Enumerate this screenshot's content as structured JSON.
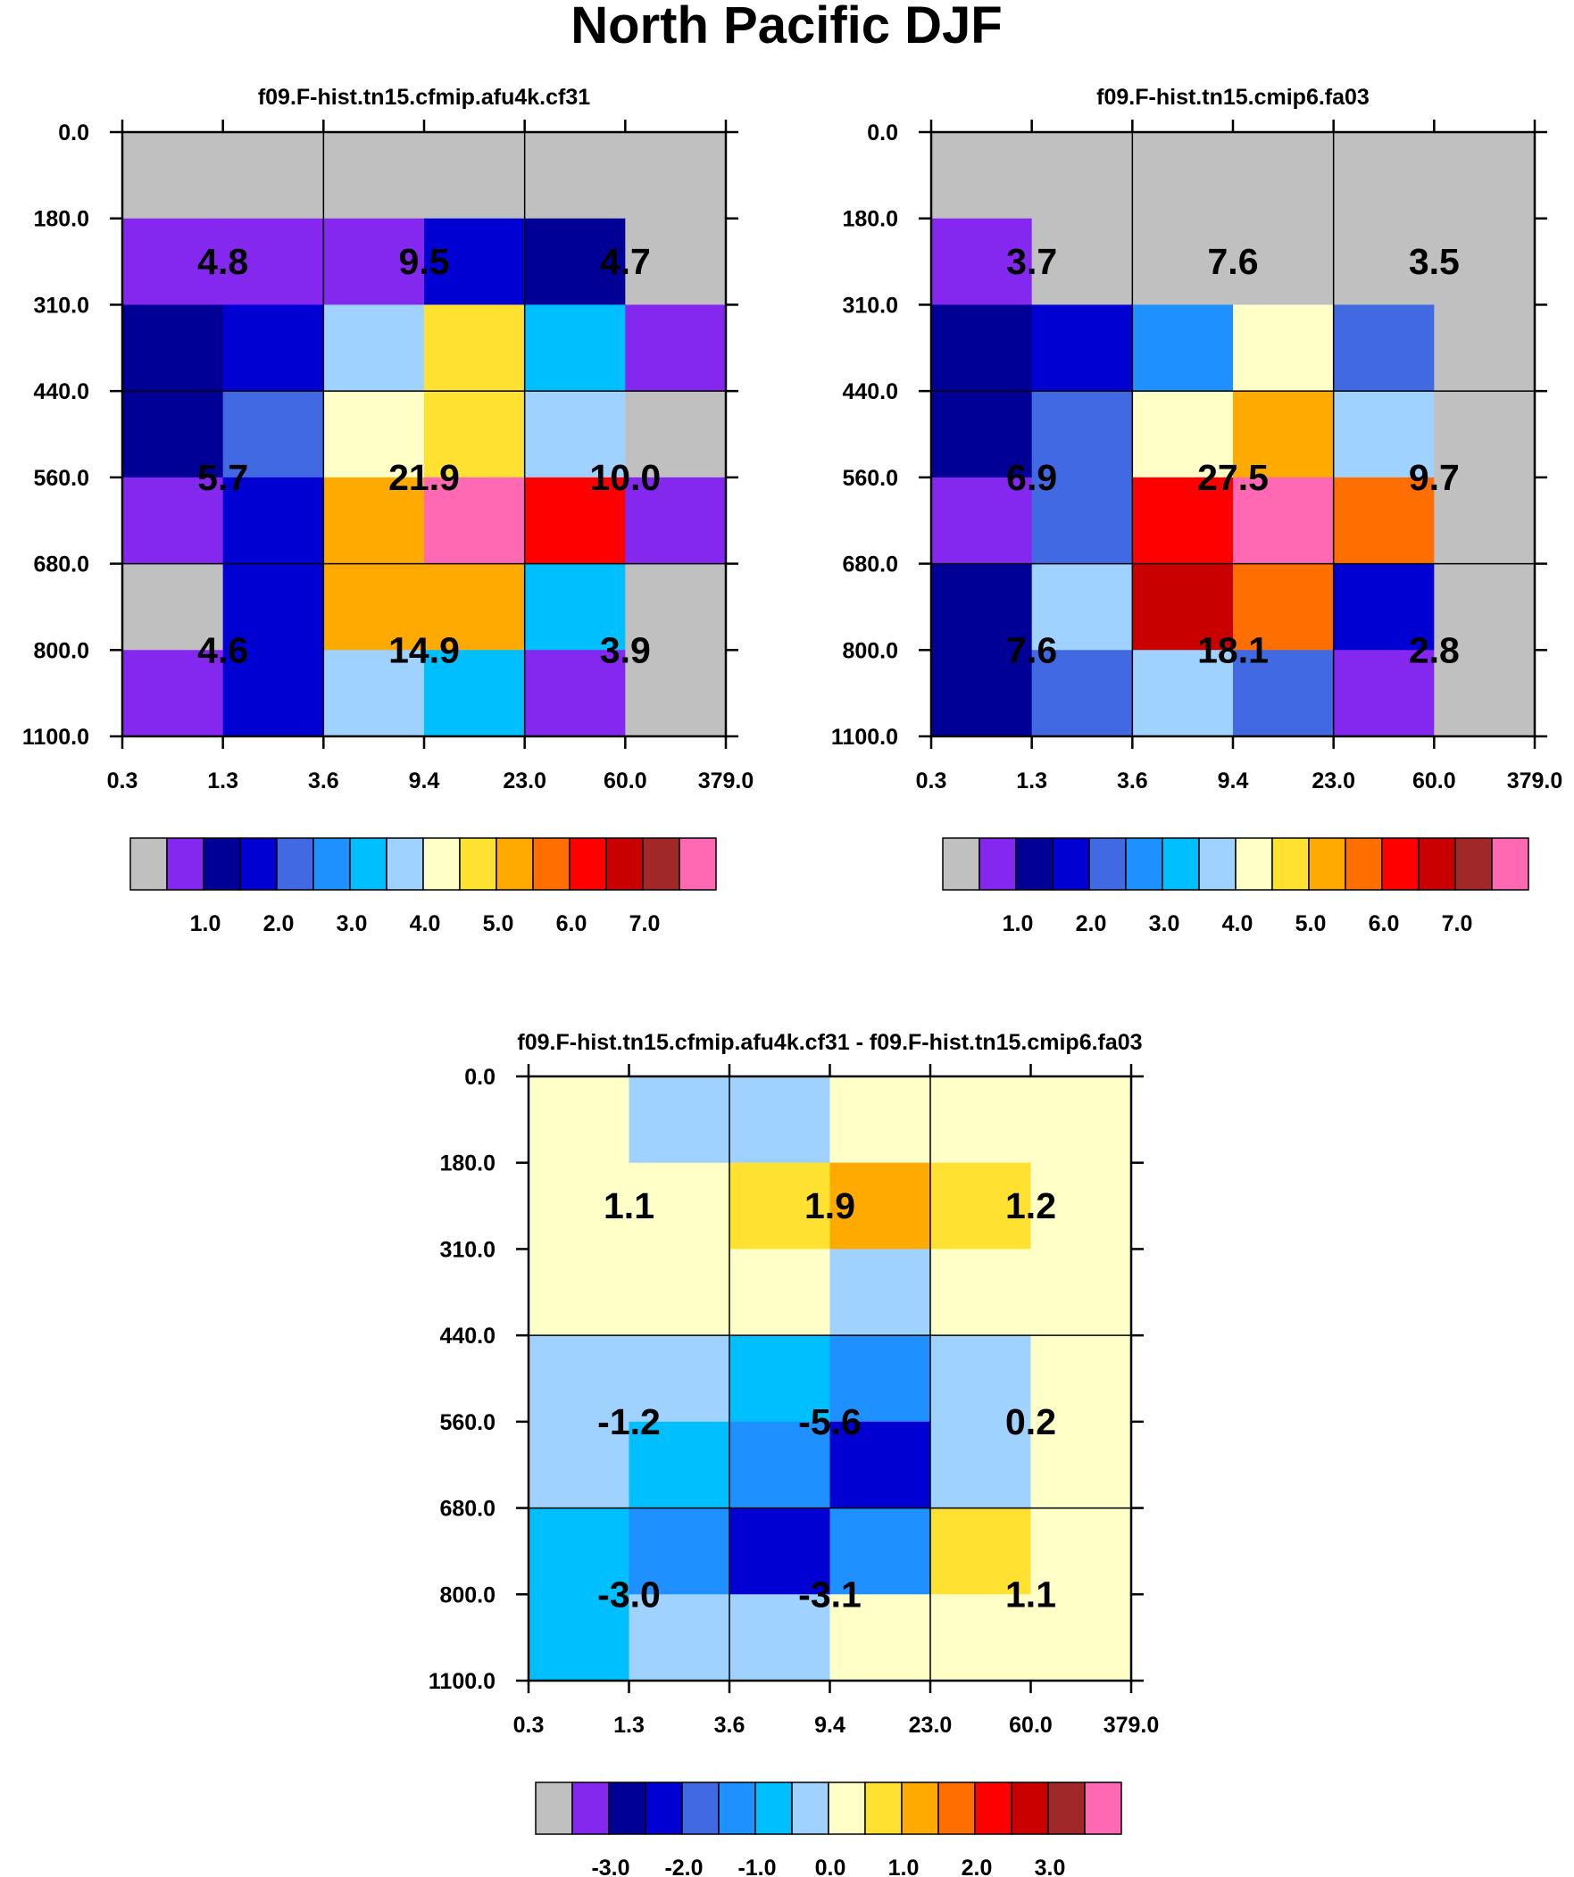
{
  "title": "North Pacific DJF",
  "chart_data": [
    {
      "type": "heatmap",
      "title": "f09.F-hist.tn15.cfmip.afu4k.cf31",
      "x_ticks": [
        "0.3",
        "1.3",
        "3.6",
        "9.4",
        "23.0",
        "60.0",
        "379.0"
      ],
      "y_ticks": [
        "0.0",
        "180.0",
        "310.0",
        "440.0",
        "560.0",
        "680.0",
        "800.0",
        "1100.0"
      ],
      "cells": [
        [
          0,
          0,
          0,
          0,
          0,
          0
        ],
        [
          1,
          1,
          1,
          3,
          2,
          0
        ],
        [
          2,
          3,
          7,
          9,
          6,
          1
        ],
        [
          2,
          4,
          8,
          9,
          7,
          0
        ],
        [
          1,
          3,
          10,
          15,
          12,
          1
        ],
        [
          0,
          3,
          10,
          10,
          6,
          0
        ],
        [
          1,
          3,
          7,
          6,
          1,
          0
        ]
      ],
      "labels": [
        [
          "4.8",
          "9.5",
          "4.7"
        ],
        [
          "5.7",
          "21.9",
          "10.0"
        ],
        [
          "4.6",
          "14.9",
          "3.9"
        ]
      ],
      "colorbar_labels": [
        "1.0",
        "2.0",
        "3.0",
        "4.0",
        "5.0",
        "6.0",
        "7.0"
      ]
    },
    {
      "type": "heatmap",
      "title": "f09.F-hist.tn15.cmip6.fa03",
      "x_ticks": [
        "0.3",
        "1.3",
        "3.6",
        "9.4",
        "23.0",
        "60.0",
        "379.0"
      ],
      "y_ticks": [
        "0.0",
        "180.0",
        "310.0",
        "440.0",
        "560.0",
        "680.0",
        "800.0",
        "1100.0"
      ],
      "cells": [
        [
          0,
          0,
          0,
          0,
          0,
          0
        ],
        [
          1,
          0,
          0,
          0,
          0,
          0
        ],
        [
          2,
          3,
          5,
          8,
          4,
          0
        ],
        [
          2,
          4,
          8,
          10,
          7,
          0
        ],
        [
          1,
          4,
          12,
          15,
          11,
          0
        ],
        [
          2,
          7,
          13,
          11,
          3,
          0
        ],
        [
          2,
          4,
          7,
          4,
          1,
          0
        ]
      ],
      "labels": [
        [
          "3.7",
          "7.6",
          "3.5"
        ],
        [
          "6.9",
          "27.5",
          "9.7"
        ],
        [
          "7.6",
          "18.1",
          "2.8"
        ]
      ],
      "colorbar_labels": [
        "1.0",
        "2.0",
        "3.0",
        "4.0",
        "5.0",
        "6.0",
        "7.0"
      ]
    },
    {
      "type": "heatmap",
      "title": "f09.F-hist.tn15.cfmip.afu4k.cf31 - f09.F-hist.tn15.cmip6.fa03",
      "x_ticks": [
        "0.3",
        "1.3",
        "3.6",
        "9.4",
        "23.0",
        "60.0",
        "379.0"
      ],
      "y_ticks": [
        "0.0",
        "180.0",
        "310.0",
        "440.0",
        "560.0",
        "680.0",
        "800.0",
        "1100.0"
      ],
      "cells": [
        [
          8,
          7,
          7,
          8,
          8,
          8
        ],
        [
          8,
          8,
          9,
          10,
          9,
          8
        ],
        [
          8,
          8,
          8,
          7,
          8,
          8
        ],
        [
          7,
          7,
          6,
          5,
          7,
          8
        ],
        [
          7,
          6,
          5,
          3,
          7,
          8
        ],
        [
          6,
          5,
          3,
          5,
          9,
          8
        ],
        [
          6,
          7,
          7,
          8,
          8,
          8
        ]
      ],
      "labels": [
        [
          "1.1",
          "1.9",
          "1.2"
        ],
        [
          "-1.2",
          "-5.6",
          "0.2"
        ],
        [
          "-3.0",
          "-3.1",
          "1.1"
        ]
      ],
      "colorbar_labels": [
        "-3.0",
        "-2.0",
        "-1.0",
        "0.0",
        "1.0",
        "2.0",
        "3.0"
      ]
    }
  ],
  "palette": [
    "#c0c0c0",
    "#8428f0",
    "#000096",
    "#0000d2",
    "#4169e1",
    "#1e90ff",
    "#00bfff",
    "#a0d2ff",
    "#ffffc8",
    "#ffe132",
    "#ffaa00",
    "#ff6e00",
    "#ff0000",
    "#c80000",
    "#a02828",
    "#ff69b4"
  ]
}
